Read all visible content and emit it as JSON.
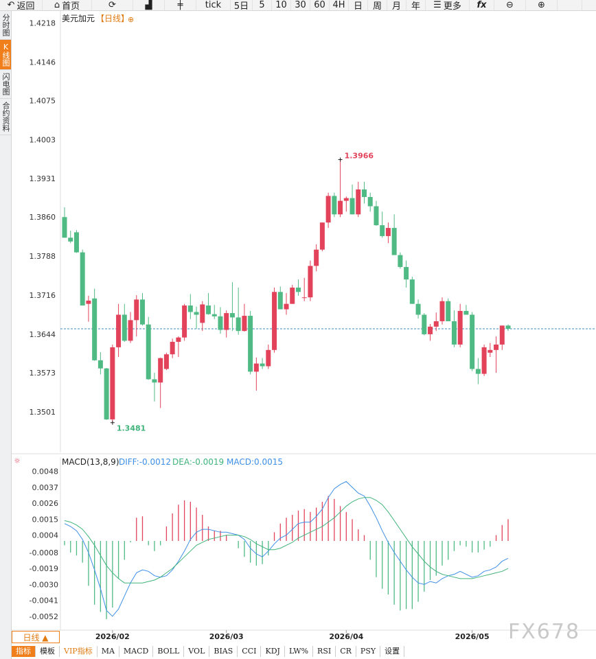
{
  "toolbar": {
    "back": "返回",
    "home": "首页",
    "tick": "tick",
    "five_day": "5日",
    "periods": [
      "5",
      "10",
      "30",
      "60",
      "4H",
      "日",
      "周",
      "月",
      "年"
    ],
    "more": "更多"
  },
  "sidebar": [
    "分时图",
    "K线图",
    "闪电图",
    "合约资料"
  ],
  "chart_header": {
    "symbol": "美元加元",
    "period": "【日线】"
  },
  "price_axis": [
    "1.4218",
    "1.4146",
    "1.4075",
    "1.4003",
    "1.3931",
    "1.3860",
    "1.3788",
    "1.3716",
    "1.3644",
    "1.3573",
    "1.3501"
  ],
  "annotations": {
    "high": "1.3966",
    "low": "1.3481"
  },
  "macd_header": {
    "label": "MACD(13,8,9)",
    "diff": "DIFF:-0.0012",
    "dea": "DEA:-0.0019",
    "macd": "MACD:0.0015"
  },
  "macd_axis": [
    "0.0048",
    "0.0037",
    "0.0026",
    "0.0015",
    "0.0004",
    "-0.0008",
    "-0.0019",
    "-0.0030",
    "-0.0041",
    "-0.0052"
  ],
  "date_axis": [
    "2026/02",
    "2026/03",
    "2026/04",
    "2026/05"
  ],
  "period_tab": "日线 ▲",
  "bottom_tabs": [
    "指标",
    "模板",
    "VIP指标",
    "MA",
    "MACD",
    "BOLL",
    "VOL",
    "BIAS",
    "CCI",
    "KDJ",
    "LW%",
    "RSI",
    "CR",
    "PSY",
    "设置"
  ],
  "watermark": "FX678",
  "colors": {
    "up": "#e2435a",
    "down": "#4fba84",
    "accent": "#f07f1b",
    "diff": "#3d8ee6",
    "dea": "#3fb37a"
  },
  "chart_data": {
    "type": "candlestick",
    "ylim": [
      1.343,
      1.424
    ],
    "reference_price": 1.3654,
    "candles": [
      [
        1.386,
        1.3878,
        1.3822,
        1.3822
      ],
      [
        1.3822,
        1.3835,
        1.3812,
        1.3815
      ],
      [
        1.3832,
        1.3836,
        1.3794,
        1.3795
      ],
      [
        1.3795,
        1.38,
        1.3697,
        1.3697
      ],
      [
        1.37,
        1.3715,
        1.3667,
        1.3706
      ],
      [
        1.371,
        1.3728,
        1.3595,
        1.3596
      ],
      [
        1.3596,
        1.3611,
        1.357,
        1.3581
      ],
      [
        1.3581,
        1.3582,
        1.3486,
        1.3487
      ],
      [
        1.3487,
        1.3625,
        1.3481,
        1.362
      ],
      [
        1.362,
        1.37,
        1.3602,
        1.368
      ],
      [
        1.368,
        1.37,
        1.363,
        1.3632
      ],
      [
        1.3632,
        1.3685,
        1.3628,
        1.367
      ],
      [
        1.367,
        1.3716,
        1.364,
        1.3708
      ],
      [
        1.3708,
        1.372,
        1.366,
        1.3662
      ],
      [
        1.3662,
        1.3676,
        1.356,
        1.3561
      ],
      [
        1.3561,
        1.3573,
        1.352,
        1.3555
      ],
      [
        1.3555,
        1.3601,
        1.3508,
        1.36
      ],
      [
        1.358,
        1.361,
        1.3578,
        1.3607
      ],
      [
        1.3607,
        1.3636,
        1.36,
        1.363
      ],
      [
        1.363,
        1.364,
        1.3602,
        1.3638
      ],
      [
        1.3638,
        1.37,
        1.3632,
        1.3697
      ],
      [
        1.3697,
        1.3718,
        1.3672,
        1.3685
      ],
      [
        1.3685,
        1.3695,
        1.3654,
        1.368
      ],
      [
        1.3665,
        1.3705,
        1.365,
        1.3699
      ],
      [
        1.3697,
        1.372,
        1.368,
        1.3681
      ],
      [
        1.3681,
        1.3698,
        1.3672,
        1.3677
      ],
      [
        1.3677,
        1.3694,
        1.3645,
        1.3652
      ],
      [
        1.3652,
        1.3688,
        1.3638,
        1.3683
      ],
      [
        1.3683,
        1.374,
        1.365,
        1.3675
      ],
      [
        1.3675,
        1.373,
        1.3643,
        1.365
      ],
      [
        1.365,
        1.37,
        1.3649,
        1.3678
      ],
      [
        1.3678,
        1.3687,
        1.357,
        1.3575
      ],
      [
        1.3575,
        1.3601,
        1.354,
        1.359
      ],
      [
        1.359,
        1.36,
        1.358,
        1.3585
      ],
      [
        1.3585,
        1.3625,
        1.358,
        1.3615
      ],
      [
        1.3615,
        1.373,
        1.361,
        1.3722
      ],
      [
        1.3722,
        1.3732,
        1.369,
        1.369
      ],
      [
        1.369,
        1.372,
        1.368,
        1.37
      ],
      [
        1.37,
        1.3735,
        1.37,
        1.373
      ],
      [
        1.373,
        1.3745,
        1.3715,
        1.3722
      ],
      [
        1.3712,
        1.3748,
        1.3705,
        1.3712
      ],
      [
        1.3712,
        1.378,
        1.3705,
        1.377
      ],
      [
        1.377,
        1.381,
        1.376,
        1.38
      ],
      [
        1.38,
        1.385,
        1.3797,
        1.385
      ],
      [
        1.385,
        1.3905,
        1.384,
        1.3899
      ],
      [
        1.3899,
        1.3905,
        1.386,
        1.3865
      ],
      [
        1.3865,
        1.3966,
        1.386,
        1.389
      ],
      [
        1.389,
        1.3898,
        1.387,
        1.3895
      ],
      [
        1.3895,
        1.392,
        1.3865,
        1.3865
      ],
      [
        1.3865,
        1.3925,
        1.386,
        1.3911
      ],
      [
        1.3911,
        1.3925,
        1.3885,
        1.3897
      ],
      [
        1.3897,
        1.3905,
        1.387,
        1.388
      ],
      [
        1.388,
        1.389,
        1.3844,
        1.3845
      ],
      [
        1.3845,
        1.387,
        1.3822,
        1.3825
      ],
      [
        1.3825,
        1.385,
        1.3812,
        1.384
      ],
      [
        1.384,
        1.3865,
        1.379,
        1.379
      ],
      [
        1.379,
        1.3795,
        1.3765,
        1.3768
      ],
      [
        1.3768,
        1.378,
        1.373,
        1.3745
      ],
      [
        1.3745,
        1.375,
        1.37,
        1.37
      ],
      [
        1.37,
        1.3708,
        1.3673,
        1.368
      ],
      [
        1.368,
        1.3683,
        1.3642,
        1.3644
      ],
      [
        1.3644,
        1.3663,
        1.3632,
        1.3658
      ],
      [
        1.3658,
        1.3684,
        1.365,
        1.3668
      ],
      [
        1.3668,
        1.3712,
        1.3662,
        1.3705
      ],
      [
        1.3705,
        1.371,
        1.3668,
        1.3668
      ],
      [
        1.3668,
        1.3688,
        1.362,
        1.3625
      ],
      [
        1.3625,
        1.37,
        1.362,
        1.3687
      ],
      [
        1.3687,
        1.3698,
        1.368,
        1.368
      ],
      [
        1.368,
        1.3685,
        1.3576,
        1.358
      ],
      [
        1.358,
        1.36,
        1.3552,
        1.3571
      ],
      [
        1.3571,
        1.3625,
        1.3567,
        1.362
      ],
      [
        1.361,
        1.3628,
        1.3602,
        1.3615
      ],
      [
        1.3615,
        1.364,
        1.3573,
        1.3625
      ],
      [
        1.3625,
        1.366,
        1.3615,
        1.366
      ],
      [
        1.366,
        1.3662,
        1.365,
        1.3654
      ]
    ],
    "macd": {
      "ylim": [
        -0.0063,
        0.0054
      ],
      "hist": [
        -0.0003,
        -0.0008,
        -0.001,
        -0.0015,
        -0.0031,
        -0.0044,
        -0.0049,
        -0.0054,
        -0.0046,
        -0.0026,
        -0.0013,
        -0.0001,
        0.0016,
        0.0017,
        -0.0003,
        -0.0007,
        -0.0003,
        0.001,
        0.0019,
        0.0025,
        0.0028,
        0.0027,
        0.0023,
        0.0018,
        0.001,
        0.0007,
        0.0007,
        0.0004,
        0.0,
        -0.0005,
        -0.0011,
        -0.0015,
        -0.0017,
        -0.0016,
        -0.001,
        0.0006,
        0.0012,
        0.0016,
        0.0018,
        0.0021,
        0.0022,
        0.002,
        0.0023,
        0.0027,
        0.0031,
        0.0029,
        0.0024,
        0.002,
        0.0015,
        0.0008,
        0.0004,
        -0.0013,
        -0.0025,
        -0.0033,
        -0.0037,
        -0.0044,
        -0.0048,
        -0.0047,
        -0.0047,
        -0.0042,
        -0.0035,
        -0.0027,
        -0.0024,
        -0.0017,
        -0.0013,
        -0.0007,
        -0.0003,
        -0.0004,
        -0.0008,
        -0.0008,
        -0.0006,
        -0.0004,
        0.0004,
        0.0011,
        0.0015
      ],
      "diff": [
        0.0012,
        0.001,
        0.0007,
        0.0001,
        -0.0008,
        -0.002,
        -0.0033,
        -0.0048,
        -0.0052,
        -0.0047,
        -0.0038,
        -0.0029,
        -0.0022,
        -0.002,
        -0.0021,
        -0.0024,
        -0.0025,
        -0.0024,
        -0.002,
        -0.0014,
        -0.0007,
        0.0001,
        0.0006,
        0.0008,
        0.0008,
        0.0007,
        0.0006,
        0.0006,
        0.0005,
        0.0004,
        0.0001,
        -0.0005,
        -0.0009,
        -0.0011,
        -0.0007,
        -0.0002,
        0.0002,
        0.0004,
        0.0008,
        0.0012,
        0.0013,
        0.0013,
        0.0017,
        0.0022,
        0.003,
        0.0036,
        0.0039,
        0.0041,
        0.0037,
        0.0033,
        0.0031,
        0.0024,
        0.0016,
        0.0007,
        -0.0001,
        -0.0008,
        -0.0014,
        -0.002,
        -0.0025,
        -0.0029,
        -0.003,
        -0.0028,
        -0.0029,
        -0.0026,
        -0.0024,
        -0.0023,
        -0.0021,
        -0.0023,
        -0.0025,
        -0.0024,
        -0.0021,
        -0.002,
        -0.0018,
        -0.0014,
        -0.0012
      ],
      "dea": [
        0.0014,
        0.0013,
        0.0011,
        0.0008,
        0.0003,
        -0.0003,
        -0.001,
        -0.0017,
        -0.0022,
        -0.0026,
        -0.0029,
        -0.0029,
        -0.0029,
        -0.0029,
        -0.0028,
        -0.0027,
        -0.0025,
        -0.0022,
        -0.0019,
        -0.0015,
        -0.0011,
        -0.0007,
        -0.0003,
        -0.0001,
        0.0001,
        0.0002,
        0.0003,
        0.0004,
        0.0004,
        0.0004,
        0.0003,
        0.0001,
        -0.0002,
        -0.0004,
        -0.0006,
        -0.0006,
        -0.0005,
        -0.0003,
        -0.0001,
        0.0002,
        0.0004,
        0.0006,
        0.0008,
        0.001,
        0.0013,
        0.0016,
        0.002,
        0.0024,
        0.0027,
        0.0029,
        0.003,
        0.003,
        0.0028,
        0.0025,
        0.002,
        0.0014,
        0.0008,
        0.0002,
        -0.0004,
        -0.0009,
        -0.0014,
        -0.0018,
        -0.0021,
        -0.0023,
        -0.0024,
        -0.0025,
        -0.0026,
        -0.0026,
        -0.0026,
        -0.0025,
        -0.0024,
        -0.0023,
        -0.0022,
        -0.0021,
        -0.0019
      ]
    }
  }
}
